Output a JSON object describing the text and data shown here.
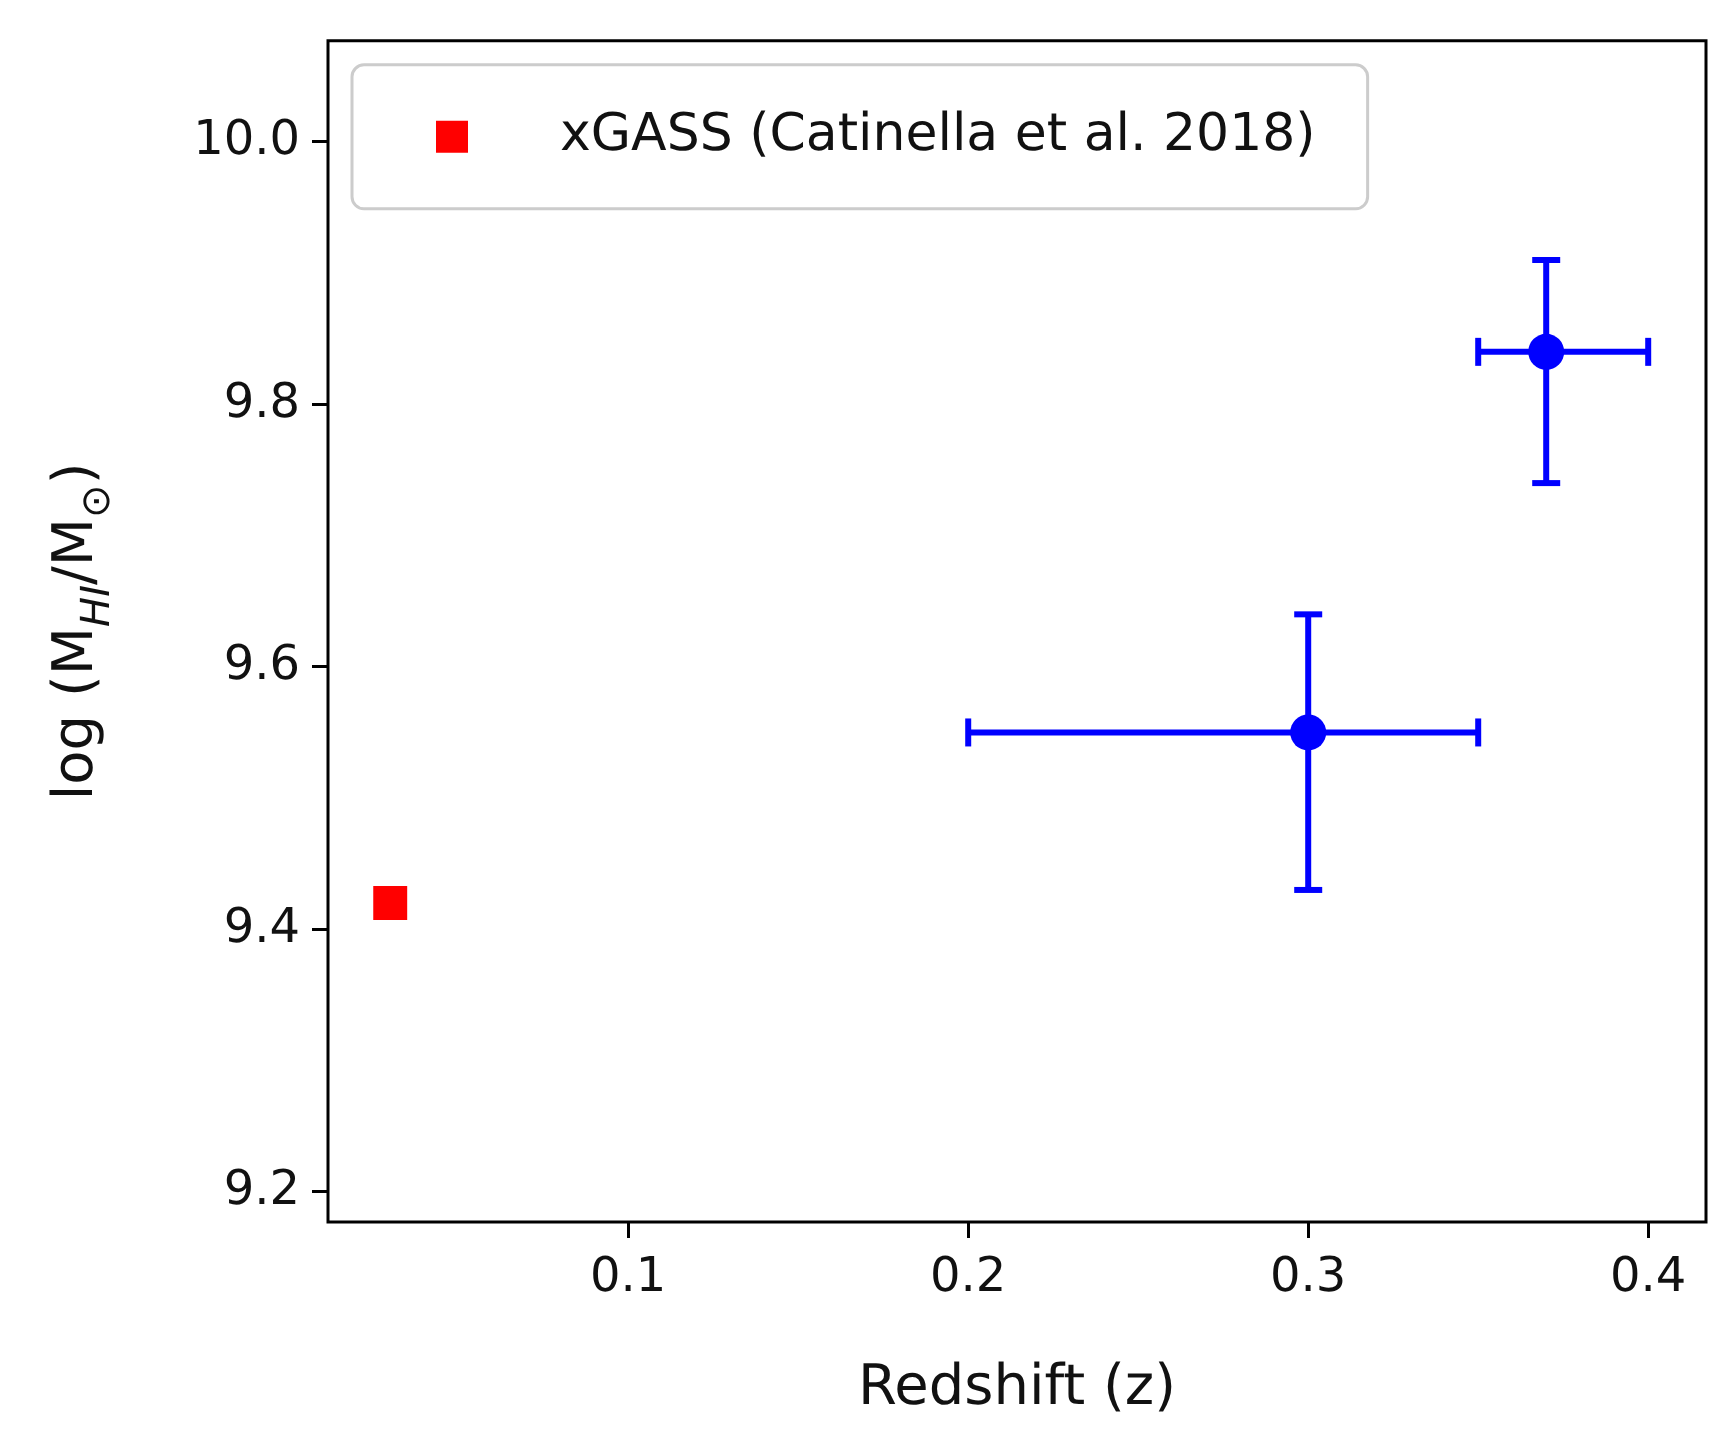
{
  "chart_data": {
    "type": "scatter",
    "xlabel": "Redshift (z)",
    "ylabel": "log (M$_{HI}$/M$_{⊙}$)",
    "xlim": [
      0.0117,
      0.417
    ],
    "xticks": [
      0.1,
      0.2,
      0.3,
      0.4
    ],
    "ylim": [
      9.177,
      10.077
    ],
    "yticks": [
      {
        "value": 9.2,
        "label": "9.2"
      },
      {
        "value": 9.4,
        "label": "9.4"
      },
      {
        "value": 9.6,
        "label": "9.6"
      },
      {
        "value": 9.8,
        "label": "9.8"
      },
      {
        "value": 10,
        "label": "10.0"
      }
    ],
    "grid": false,
    "legend": "top left",
    "series": [
      {
        "name": "xGASS (Catinella et al. 2018)",
        "color": "#ff0000",
        "marker": "square",
        "x": [
          0.03
        ],
        "values": [
          9.42
        ]
      },
      {
        "color": "#0000ff",
        "marker": "circle",
        "x": [
          0.3,
          0.37
        ],
        "values": [
          9.55,
          9.84
        ],
        "errors": [
          [
            9.43,
            9.64
          ],
          [
            9.74,
            9.91
          ]
        ],
        "xerrors": [
          [
            0.2,
            0.35
          ],
          [
            0.35,
            0.4
          ]
        ]
      }
    ]
  }
}
